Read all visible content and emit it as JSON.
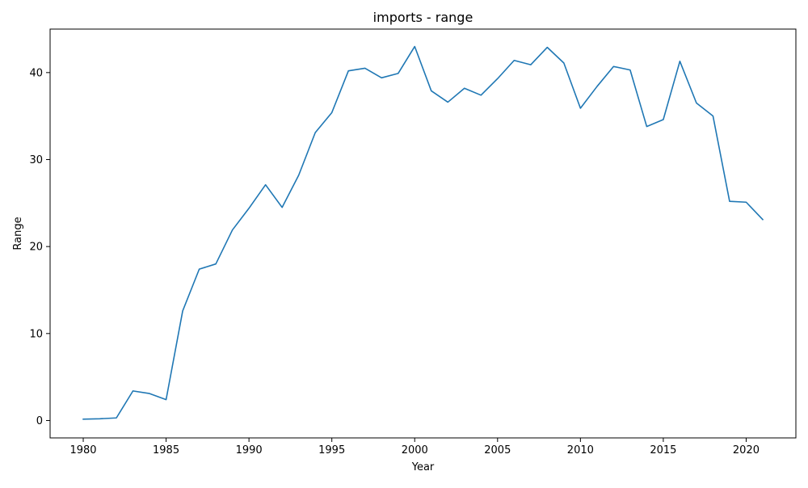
{
  "chart_data": {
    "type": "line",
    "title": "imports - range",
    "xlabel": "Year",
    "ylabel": "Range",
    "xlim": [
      1978,
      2023
    ],
    "ylim": [
      -2,
      45
    ],
    "x_ticks": [
      1980,
      1985,
      1990,
      1995,
      2000,
      2005,
      2010,
      2015,
      2020
    ],
    "y_ticks": [
      0,
      10,
      20,
      30,
      40
    ],
    "grid": false,
    "legend": "none",
    "series": [
      {
        "color": "#1f77b4",
        "x": [
          1980,
          1981,
          1982,
          1983,
          1984,
          1985,
          1986,
          1987,
          1988,
          1989,
          1990,
          1991,
          1992,
          1993,
          1994,
          1995,
          1996,
          1997,
          1998,
          1999,
          2000,
          2001,
          2002,
          2003,
          2004,
          2005,
          2006,
          2007,
          2008,
          2009,
          2010,
          2011,
          2012,
          2013,
          2014,
          2015,
          2016,
          2017,
          2018,
          2019,
          2020,
          2021
        ],
        "values": [
          0.15,
          0.2,
          0.3,
          3.4,
          3.1,
          2.4,
          12.6,
          17.4,
          18.0,
          21.9,
          24.4,
          27.1,
          24.5,
          28.2,
          33.1,
          35.4,
          40.2,
          40.5,
          39.4,
          39.9,
          43.0,
          37.9,
          36.6,
          38.2,
          37.4,
          39.3,
          41.4,
          40.9,
          42.9,
          41.1,
          35.9,
          38.4,
          40.7,
          40.3,
          33.8,
          34.6,
          41.3,
          36.5,
          35.0,
          25.2,
          25.1,
          23.1
        ]
      }
    ]
  }
}
